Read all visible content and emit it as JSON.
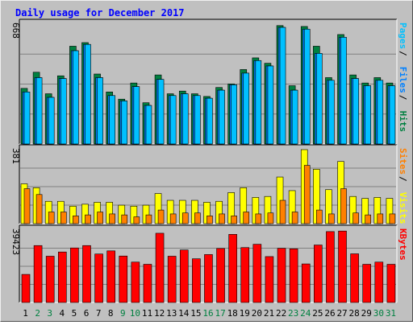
{
  "chart_data": [
    {
      "type": "bar",
      "title": "Daily usage for December 2017",
      "xlabel": "",
      "ylabel": "",
      "y_axis_label": "668",
      "right_labels": [
        "Pages",
        "Files",
        "Hits"
      ],
      "ylim": [
        0,
        668
      ],
      "categories": [
        "1",
        "2",
        "3",
        "4",
        "5",
        "6",
        "7",
        "8",
        "9",
        "10",
        "11",
        "12",
        "13",
        "14",
        "15",
        "16",
        "17",
        "18",
        "19",
        "20",
        "21",
        "22",
        "23",
        "24",
        "25",
        "26",
        "27",
        "28",
        "29",
        "30",
        "31"
      ],
      "weekend_days": [
        2,
        3,
        9,
        10,
        16,
        17,
        23,
        24,
        30,
        31
      ],
      "series": [
        {
          "name": "Hits",
          "color": "#008040",
          "values": [
            310,
            400,
            280,
            380,
            545,
            565,
            390,
            290,
            250,
            340,
            230,
            385,
            280,
            295,
            280,
            265,
            315,
            335,
            415,
            480,
            450,
            660,
            325,
            655,
            545,
            370,
            610,
            385,
            340,
            370,
            340
          ]
        },
        {
          "name": "Files",
          "color": "#0080ff",
          "values": [
            290,
            370,
            260,
            365,
            520,
            555,
            370,
            270,
            240,
            320,
            215,
            360,
            270,
            280,
            270,
            255,
            300,
            330,
            395,
            465,
            435,
            650,
            300,
            640,
            505,
            355,
            595,
            365,
            325,
            355,
            325
          ]
        },
        {
          "name": "Pages",
          "color": "#00c0ff",
          "values": [
            290,
            370,
            260,
            365,
            520,
            555,
            370,
            270,
            240,
            320,
            215,
            360,
            270,
            280,
            270,
            255,
            300,
            330,
            395,
            465,
            435,
            650,
            300,
            640,
            505,
            355,
            595,
            365,
            325,
            355,
            325
          ]
        }
      ]
    },
    {
      "type": "bar",
      "xlabel": "",
      "ylabel": "",
      "y_axis_label": "381",
      "right_labels": [
        "Sites",
        "Visits"
      ],
      "ylim": [
        0,
        381
      ],
      "categories": [
        "1",
        "2",
        "3",
        "4",
        "5",
        "6",
        "7",
        "8",
        "9",
        "10",
        "11",
        "12",
        "13",
        "14",
        "15",
        "16",
        "17",
        "18",
        "19",
        "20",
        "21",
        "22",
        "23",
        "24",
        "25",
        "26",
        "27",
        "28",
        "29",
        "30",
        "31"
      ],
      "series": [
        {
          "name": "Visits",
          "color": "#ffff00",
          "values": [
            205,
            185,
            115,
            115,
            90,
            100,
            110,
            110,
            95,
            90,
            95,
            155,
            120,
            120,
            120,
            110,
            115,
            160,
            185,
            135,
            140,
            240,
            170,
            381,
            280,
            175,
            320,
            140,
            130,
            135,
            130
          ]
        },
        {
          "name": "Sites",
          "color": "#ff8000",
          "values": [
            180,
            150,
            60,
            60,
            40,
            45,
            60,
            50,
            45,
            35,
            45,
            70,
            50,
            55,
            55,
            40,
            50,
            40,
            60,
            50,
            55,
            120,
            60,
            300,
            70,
            50,
            180,
            55,
            45,
            50,
            50
          ]
        }
      ]
    },
    {
      "type": "bar",
      "xlabel": "",
      "ylabel": "",
      "y_axis_label": "39423",
      "right_labels": [
        "KBytes"
      ],
      "ylim": [
        0,
        39423
      ],
      "categories": [
        "1",
        "2",
        "3",
        "4",
        "5",
        "6",
        "7",
        "8",
        "9",
        "10",
        "11",
        "12",
        "13",
        "14",
        "15",
        "16",
        "17",
        "18",
        "19",
        "20",
        "21",
        "22",
        "23",
        "24",
        "25",
        "26",
        "27",
        "28",
        "29",
        "30",
        "31"
      ],
      "series": [
        {
          "name": "KBytes",
          "color": "#ff0000",
          "values": [
            15300,
            31000,
            25200,
            27500,
            29700,
            31000,
            26400,
            28100,
            25300,
            22000,
            20800,
            37700,
            25200,
            28600,
            23800,
            26100,
            29400,
            37100,
            29900,
            31700,
            25000,
            29500,
            29200,
            21000,
            31300,
            38600,
            38900,
            26500,
            20800,
            22000,
            20800
          ]
        }
      ]
    }
  ]
}
